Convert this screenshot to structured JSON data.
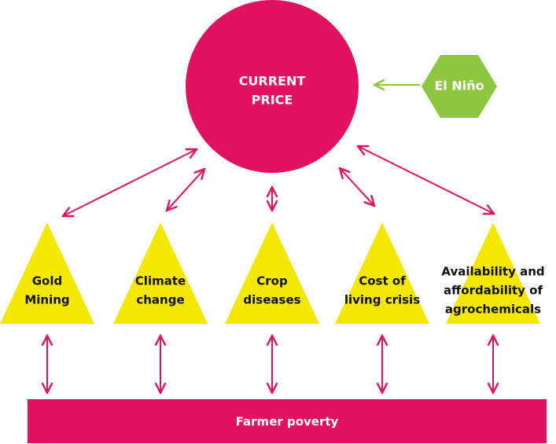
{
  "center": {
    "label": [
      "CURRENT",
      "PRICE"
    ]
  },
  "influence": {
    "label": "El Niño"
  },
  "factors": [
    {
      "label": [
        "Gold",
        "Mining"
      ]
    },
    {
      "label": [
        "Climate",
        "change"
      ]
    },
    {
      "label": [
        "Crop",
        "diseases"
      ]
    },
    {
      "label": [
        "Cost of",
        "living crisis"
      ]
    },
    {
      "label": [
        "Availability and",
        "affordability of",
        "agrochemicals"
      ]
    }
  ],
  "outcome": {
    "label": "Farmer poverty"
  }
}
